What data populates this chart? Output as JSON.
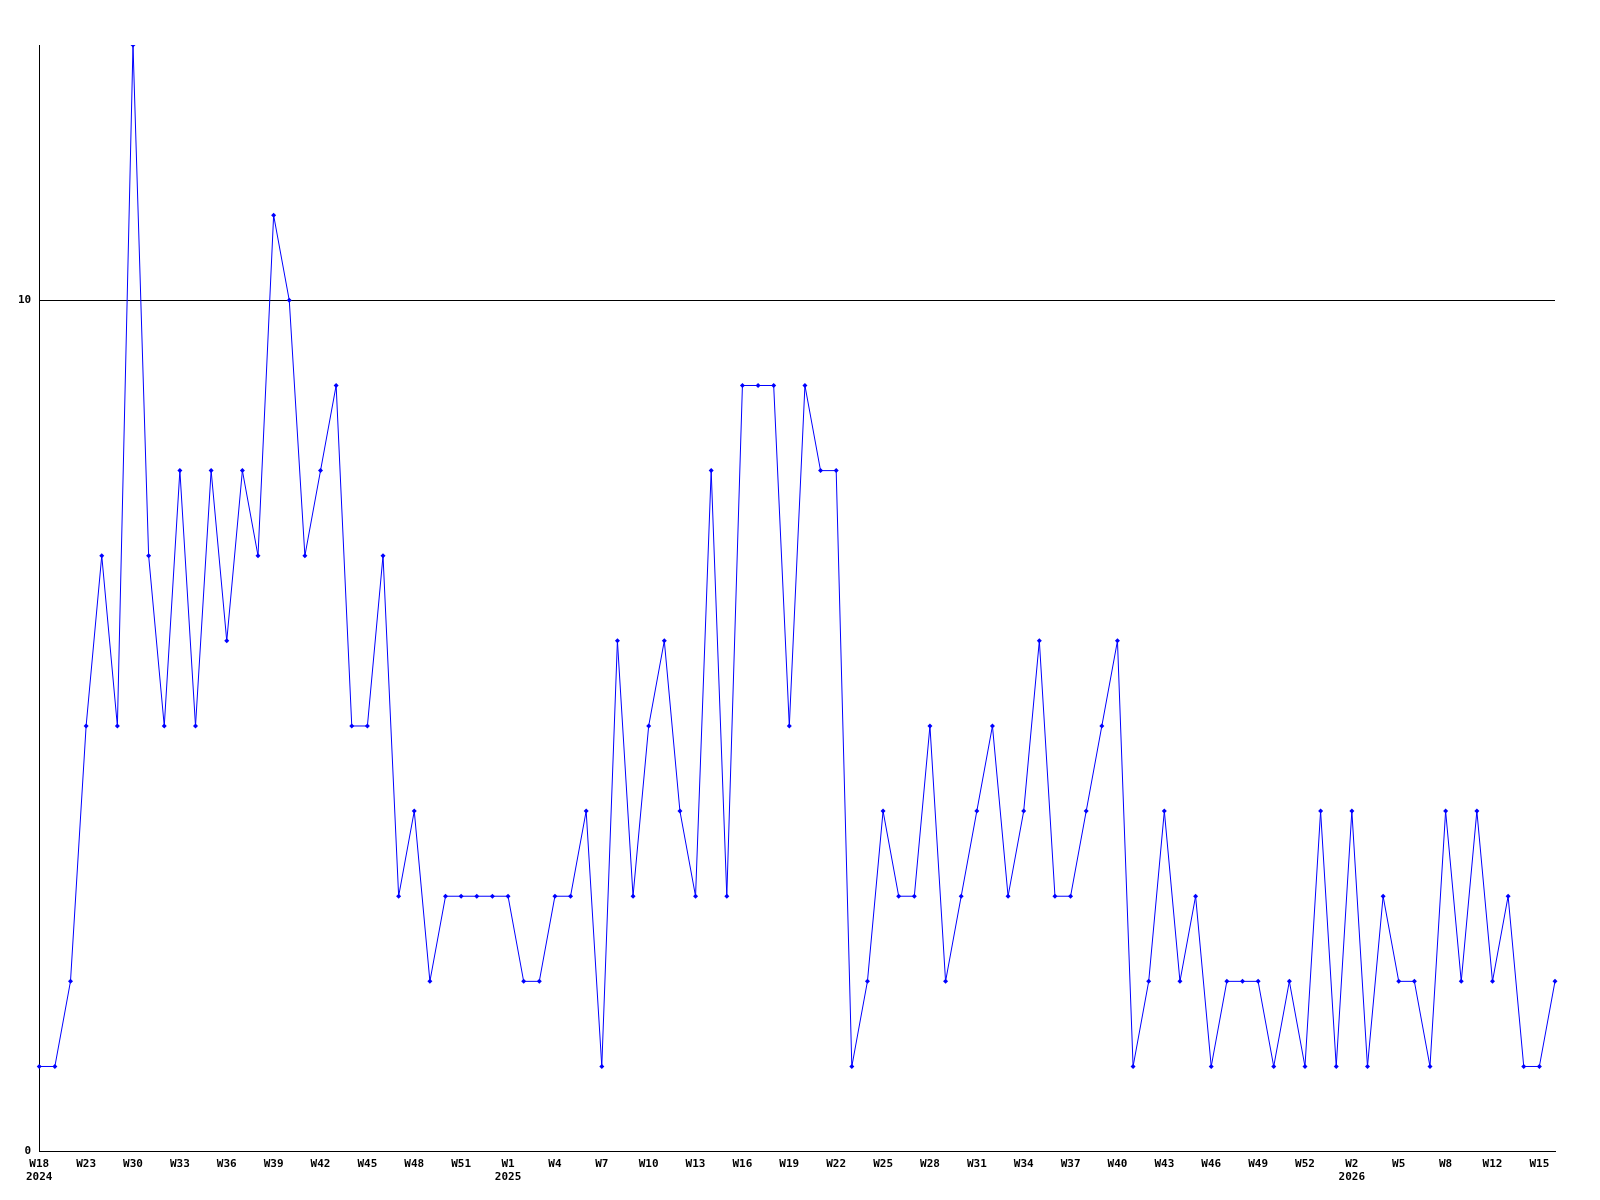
{
  "chart_data": {
    "type": "line",
    "categories": [
      "W18\n2024",
      null,
      null,
      "W23",
      null,
      null,
      "W30",
      null,
      null,
      "W33",
      null,
      null,
      "W36",
      null,
      null,
      "W39",
      null,
      null,
      "W42",
      null,
      null,
      "W45",
      null,
      null,
      "W48",
      null,
      null,
      "W51",
      null,
      null,
      "W1\n2025",
      null,
      null,
      "W4",
      null,
      null,
      "W7",
      null,
      null,
      "W10",
      null,
      null,
      "W13",
      null,
      null,
      "W16",
      null,
      null,
      "W19",
      null,
      null,
      "W22",
      null,
      null,
      "W25",
      null,
      null,
      "W28",
      null,
      null,
      "W31",
      null,
      null,
      "W34",
      null,
      null,
      "W37",
      null,
      null,
      "W40",
      null,
      null,
      "W43",
      null,
      null,
      "W46",
      null,
      null,
      "W49",
      null,
      null,
      "W52",
      null,
      null,
      "W2\n2026",
      null,
      null,
      "W5",
      null,
      null,
      "W8",
      null,
      null,
      "W12",
      null,
      null,
      "W15",
      null
    ],
    "series": [
      {
        "color": "#0000ff",
        "values": [
          1,
          1,
          2,
          5,
          7,
          5,
          13,
          7,
          5,
          8,
          5,
          8,
          6,
          8,
          7,
          11,
          10,
          7,
          8,
          9,
          5,
          5,
          7,
          3,
          4,
          2,
          3,
          3,
          3,
          3,
          3,
          2,
          2,
          3,
          3,
          4,
          1,
          6,
          3,
          5,
          6,
          4,
          3,
          8,
          3,
          9,
          9,
          9,
          5,
          9,
          8,
          8,
          1,
          2,
          4,
          3,
          3,
          5,
          2,
          3,
          4,
          5,
          3,
          4,
          6,
          3,
          3,
          4,
          5,
          6,
          1,
          2,
          4,
          2,
          3,
          1,
          2,
          2,
          2,
          1,
          2,
          1,
          4,
          1,
          4,
          1,
          3,
          2,
          2,
          1,
          4,
          2,
          4,
          2,
          3,
          1,
          1,
          2
        ]
      }
    ],
    "ylim": [
      0,
      13
    ],
    "yticks": [
      0,
      10
    ],
    "grid": "y",
    "marker": "diamond",
    "line_style": "solid"
  }
}
